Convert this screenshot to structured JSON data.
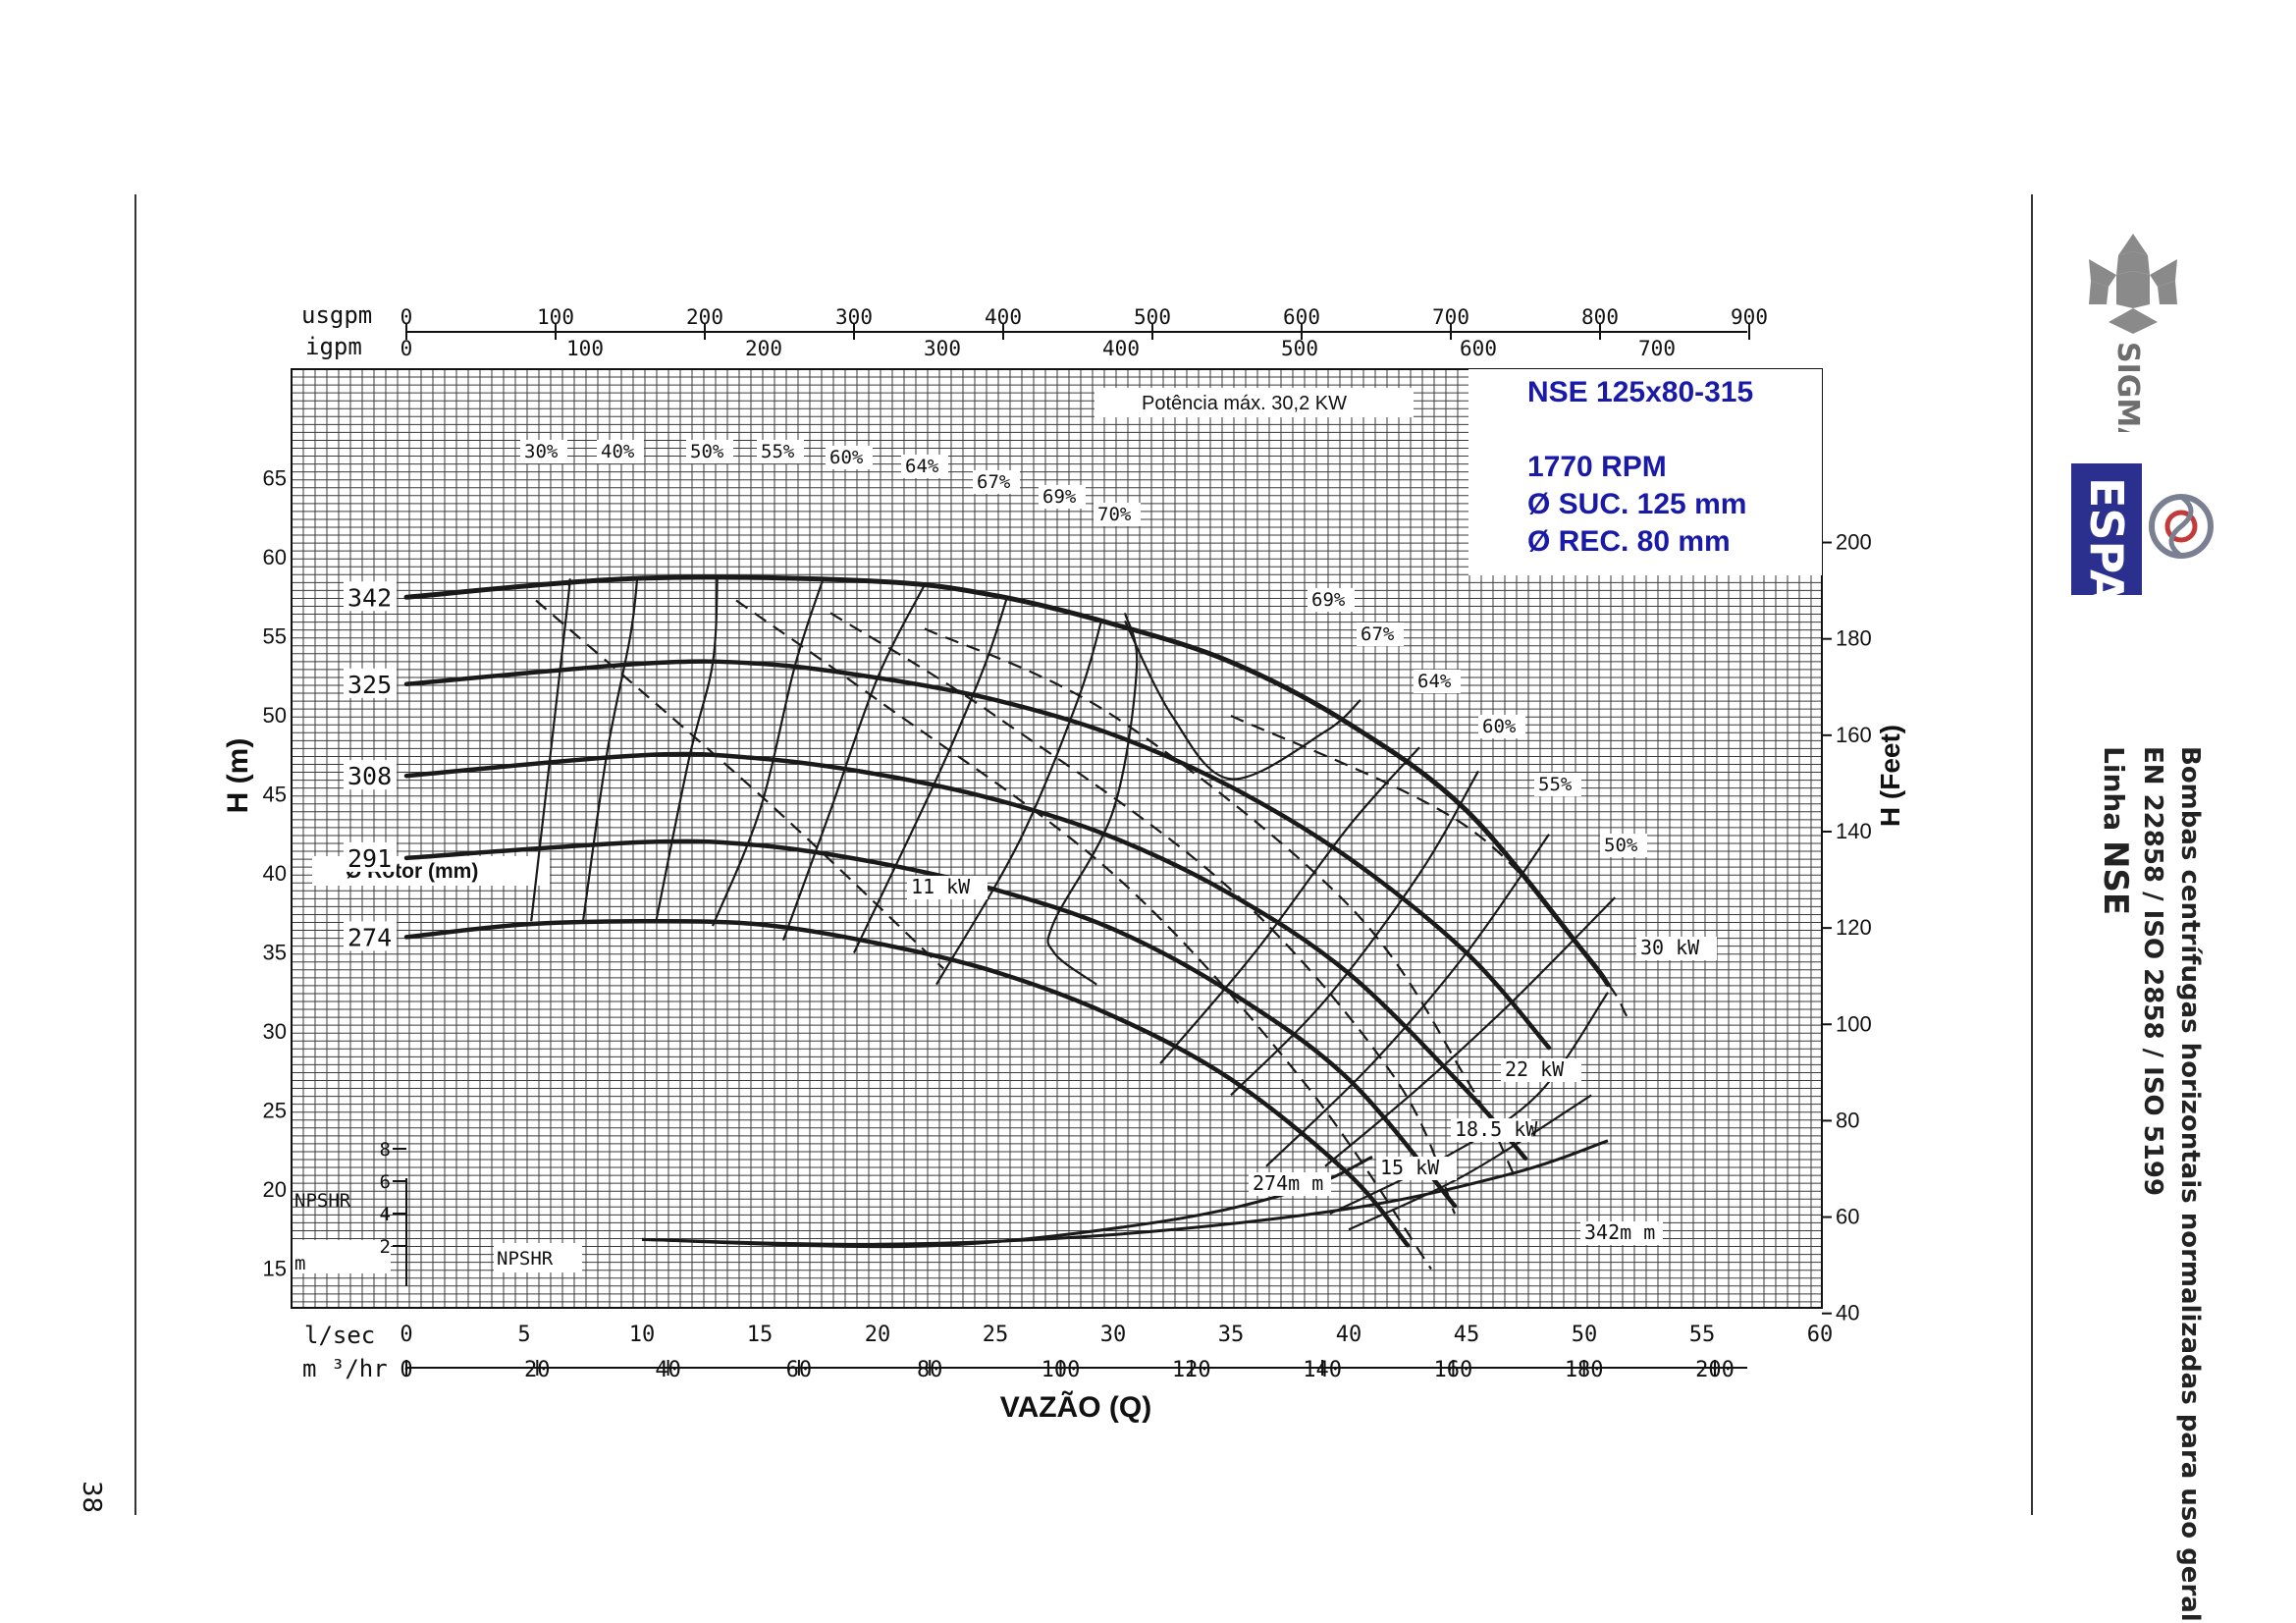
{
  "page": {
    "number": "38"
  },
  "sidebar": {
    "line1": "Bombas centrífugas horizontais normalizadas para uso geral",
    "line2": "EN 22858 / ISO 2858 / ISO 5199",
    "line3_prefix": "Linha ",
    "line3_model": "NSE",
    "logos": [
      {
        "name": "sigma-logo",
        "text": "SIGMA"
      },
      {
        "name": "espa-logo",
        "text": "ESPA"
      }
    ]
  },
  "colors": {
    "ink": "#1a1a1a",
    "grid": "#3a3a3a",
    "title_blue": "#1a1aa8",
    "logo_blue": "#2b2f8e"
  },
  "chart_data": {
    "type": "line",
    "title": "NSE 125x80-315",
    "info": [
      "1770 RPM",
      "Ø SUC. 125 mm",
      "Ø REC. 80 mm"
    ],
    "max_power_note": "Potência máx. 30,2 KW",
    "xlabel": "VAZÃO (Q)",
    "ylabel_left": "H (m)",
    "ylabel_right": "H (Feet)",
    "rotor_label": "Ø Rotor (mm)",
    "x_lsec": {
      "label": "l/sec",
      "range": [
        0,
        60
      ],
      "ticks": [
        "0",
        "5",
        "10",
        "15",
        "20",
        "25",
        "30",
        "35",
        "40",
        "45",
        "50",
        "55",
        "60"
      ]
    },
    "x_m3hr": {
      "label": "m ³/hr",
      "ticks": [
        "0",
        "20",
        "40",
        "60",
        "80",
        "100",
        "120",
        "140",
        "160",
        "180",
        "200"
      ]
    },
    "x_usgpm": {
      "label": "usgpm",
      "ticks": [
        "0",
        "100",
        "200",
        "300",
        "400",
        "500",
        "600",
        "700",
        "800",
        "900"
      ]
    },
    "x_igpm": {
      "label": "igpm",
      "ticks": [
        "0",
        "100",
        "200",
        "300",
        "400",
        "500",
        "600",
        "700"
      ]
    },
    "y_left": {
      "range": [
        0,
        65
      ],
      "ticks": [
        "15",
        "20",
        "25",
        "30",
        "35",
        "40",
        "45",
        "50",
        "55",
        "60",
        "65"
      ]
    },
    "y_right": {
      "unit": "ft",
      "ticks": [
        "40",
        "60",
        "80",
        "100",
        "120",
        "140",
        "160",
        "180",
        "200"
      ]
    },
    "npshr": {
      "label": "NPSHR",
      "unit": "m",
      "ticks": [
        "2",
        "4",
        "6",
        "8"
      ]
    },
    "grid": true,
    "series": [
      {
        "name": "342",
        "points": [
          [
            0,
            57.5
          ],
          [
            10,
            58.7
          ],
          [
            20,
            58.5
          ],
          [
            25,
            57.6
          ],
          [
            30,
            55.8
          ],
          [
            35,
            53.4
          ],
          [
            40,
            49.5
          ],
          [
            45,
            44
          ],
          [
            50,
            35
          ],
          [
            51,
            33
          ]
        ]
      },
      {
        "name": "325",
        "points": [
          [
            0,
            52
          ],
          [
            10,
            53.3
          ],
          [
            15,
            53.3
          ],
          [
            20,
            52.4
          ],
          [
            25,
            51
          ],
          [
            30,
            48.8
          ],
          [
            35,
            45.5
          ],
          [
            40,
            41
          ],
          [
            45,
            35
          ],
          [
            48.5,
            29
          ]
        ]
      },
      {
        "name": "308",
        "points": [
          [
            0,
            46.2
          ],
          [
            10,
            47.5
          ],
          [
            15,
            47.3
          ],
          [
            20,
            46.3
          ],
          [
            25,
            44.7
          ],
          [
            30,
            42.3
          ],
          [
            35,
            38.7
          ],
          [
            40,
            33.7
          ],
          [
            45,
            26.3
          ],
          [
            47.5,
            22
          ]
        ]
      },
      {
        "name": "291",
        "points": [
          [
            0,
            41
          ],
          [
            10,
            42
          ],
          [
            15,
            41.8
          ],
          [
            20,
            40.7
          ],
          [
            25,
            39
          ],
          [
            30,
            36.5
          ],
          [
            35,
            32.5
          ],
          [
            40,
            27
          ],
          [
            44.5,
            19
          ]
        ]
      },
      {
        "name": "274",
        "points": [
          [
            0,
            36
          ],
          [
            5,
            36.8
          ],
          [
            10,
            37
          ],
          [
            15,
            36.8
          ],
          [
            20,
            35.6
          ],
          [
            25,
            33.8
          ],
          [
            30,
            31
          ],
          [
            35,
            27
          ],
          [
            40,
            21
          ],
          [
            42.5,
            16.5
          ]
        ]
      }
    ],
    "efficiency_lines": [
      {
        "label": "30%",
        "points": [
          [
            5.3,
            37
          ],
          [
            6.8,
            56.5
          ],
          [
            6.9,
            58.3
          ]
        ]
      },
      {
        "label": "40%",
        "points": [
          [
            7.5,
            37
          ],
          [
            8.5,
            47.5
          ],
          [
            9.5,
            55
          ],
          [
            9.8,
            58.7
          ]
        ]
      },
      {
        "label": "50%",
        "points": [
          [
            10.6,
            37
          ],
          [
            12,
            47.3
          ],
          [
            13,
            53.3
          ],
          [
            13.2,
            58.8
          ]
        ]
      },
      {
        "label": "55%",
        "points": [
          [
            13,
            36.7
          ],
          [
            15,
            44
          ],
          [
            16.5,
            53.2
          ],
          [
            17.7,
            58.7
          ]
        ]
      },
      {
        "label": "60%",
        "points": [
          [
            16,
            35.8
          ],
          [
            18,
            44
          ],
          [
            20,
            52.4
          ],
          [
            22,
            58.3
          ]
        ]
      },
      {
        "label": "64%",
        "points": [
          [
            19,
            35
          ],
          [
            22.5,
            46
          ],
          [
            24.5,
            53
          ],
          [
            25.5,
            57.5
          ]
        ]
      },
      {
        "label": "67%",
        "points": [
          [
            22.5,
            33
          ],
          [
            26,
            42
          ],
          [
            28.5,
            51
          ],
          [
            29.5,
            56
          ]
        ]
      },
      {
        "label": "69%",
        "points": [
          [
            29.3,
            33
          ],
          [
            27.5,
            35
          ],
          [
            27.5,
            37
          ],
          [
            30,
            44
          ],
          [
            31,
            53
          ],
          [
            30.5,
            56.5
          ]
        ]
      },
      {
        "label": "70%",
        "points": [
          [
            30.5,
            56
          ],
          [
            32.5,
            50
          ],
          [
            35,
            46
          ],
          [
            39,
            49
          ],
          [
            40.5,
            51
          ]
        ]
      },
      {
        "label": "69%",
        "points": [
          [
            32,
            28
          ],
          [
            36,
            35
          ],
          [
            40,
            43
          ],
          [
            43,
            48
          ]
        ]
      },
      {
        "label": "67%",
        "points": [
          [
            35,
            26
          ],
          [
            39,
            32
          ],
          [
            43,
            40
          ],
          [
            45.5,
            46.5
          ]
        ]
      },
      {
        "label": "64%",
        "points": [
          [
            36.5,
            21.5
          ],
          [
            41,
            28
          ],
          [
            45,
            35
          ],
          [
            48.5,
            42.5
          ]
        ]
      },
      {
        "label": "60%",
        "points": [
          [
            39,
            21.5
          ],
          [
            43,
            26.5
          ],
          [
            47,
            32
          ],
          [
            51.3,
            38.5
          ]
        ]
      },
      {
        "label": "55%",
        "points": [
          [
            39.2,
            18.5
          ],
          [
            44,
            22
          ],
          [
            48,
            26
          ],
          [
            51,
            32.5
          ]
        ]
      },
      {
        "label": "50%",
        "points": [
          [
            40,
            17.5
          ],
          [
            45,
            21
          ],
          [
            50.3,
            26
          ]
        ]
      }
    ],
    "power_lines": [
      {
        "label": "11 kW",
        "points": [
          [
            5.5,
            57.3
          ],
          [
            15,
            45
          ],
          [
            22.8,
            34
          ]
        ]
      },
      {
        "label": "15 kW",
        "points": [
          [
            14,
            57.3
          ],
          [
            20,
            51
          ],
          [
            30,
            40
          ],
          [
            38,
            27
          ],
          [
            43.5,
            15
          ]
        ]
      },
      {
        "label": "18.5 kW",
        "points": [
          [
            18,
            56.5
          ],
          [
            25,
            50
          ],
          [
            35,
            39
          ],
          [
            42,
            27
          ],
          [
            44.5,
            18.5
          ]
        ]
      },
      {
        "label": "22 kW",
        "points": [
          [
            22,
            55.5
          ],
          [
            30,
            50
          ],
          [
            40,
            38
          ],
          [
            45,
            27
          ],
          [
            47,
            21
          ]
        ]
      },
      {
        "label": "30 kW",
        "points": [
          [
            35,
            50
          ],
          [
            45,
            43
          ],
          [
            50.5,
            34
          ],
          [
            51.8,
            31
          ]
        ]
      }
    ],
    "npsh_curves": [
      {
        "name": "274m",
        "label": "274m m",
        "points": [
          [
            10,
            2.4
          ],
          [
            22,
            2
          ],
          [
            32,
            3.5
          ],
          [
            38,
            5.5
          ],
          [
            41,
            7.5
          ]
        ]
      },
      {
        "name": "342m",
        "label": "342m m",
        "points": [
          [
            10,
            2.4
          ],
          [
            20,
            2.1
          ],
          [
            30,
            2.7
          ],
          [
            40,
            4.3
          ],
          [
            47,
            6.5
          ],
          [
            51,
            8.5
          ]
        ]
      }
    ]
  }
}
